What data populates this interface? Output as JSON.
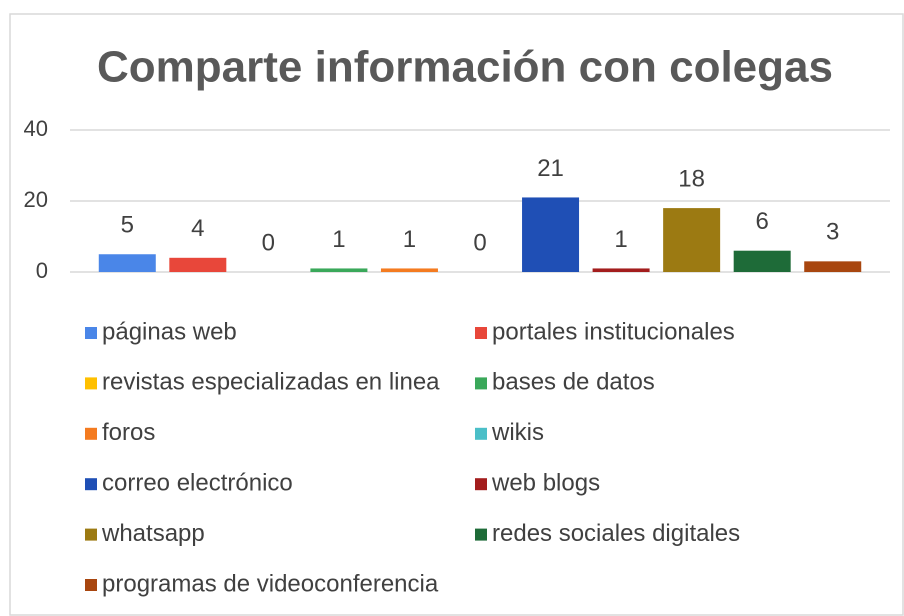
{
  "chart_data": {
    "type": "bar",
    "title": "Comparte información con colegas",
    "categories": [
      "páginas web",
      "portales institucionales",
      "revistas especializadas en linea",
      "bases de datos",
      "foros",
      "wikis",
      "correo electrónico",
      "web blogs",
      "whatsapp",
      "redes sociales digitales",
      "programas de videoconferencia"
    ],
    "values": [
      5,
      4,
      0,
      1,
      1,
      0,
      21,
      1,
      18,
      6,
      3
    ],
    "colors": [
      "#4a86e8",
      "#e8473a",
      "#ffc000",
      "#3aa85a",
      "#f47b20",
      "#4bbfc8",
      "#1f4fb5",
      "#a31d1d",
      "#9c7a12",
      "#1e6b38",
      "#a8460f"
    ],
    "ylim": [
      0,
      40
    ],
    "yticks": [
      0,
      20,
      40
    ],
    "grid": true,
    "legend": "bottom"
  }
}
